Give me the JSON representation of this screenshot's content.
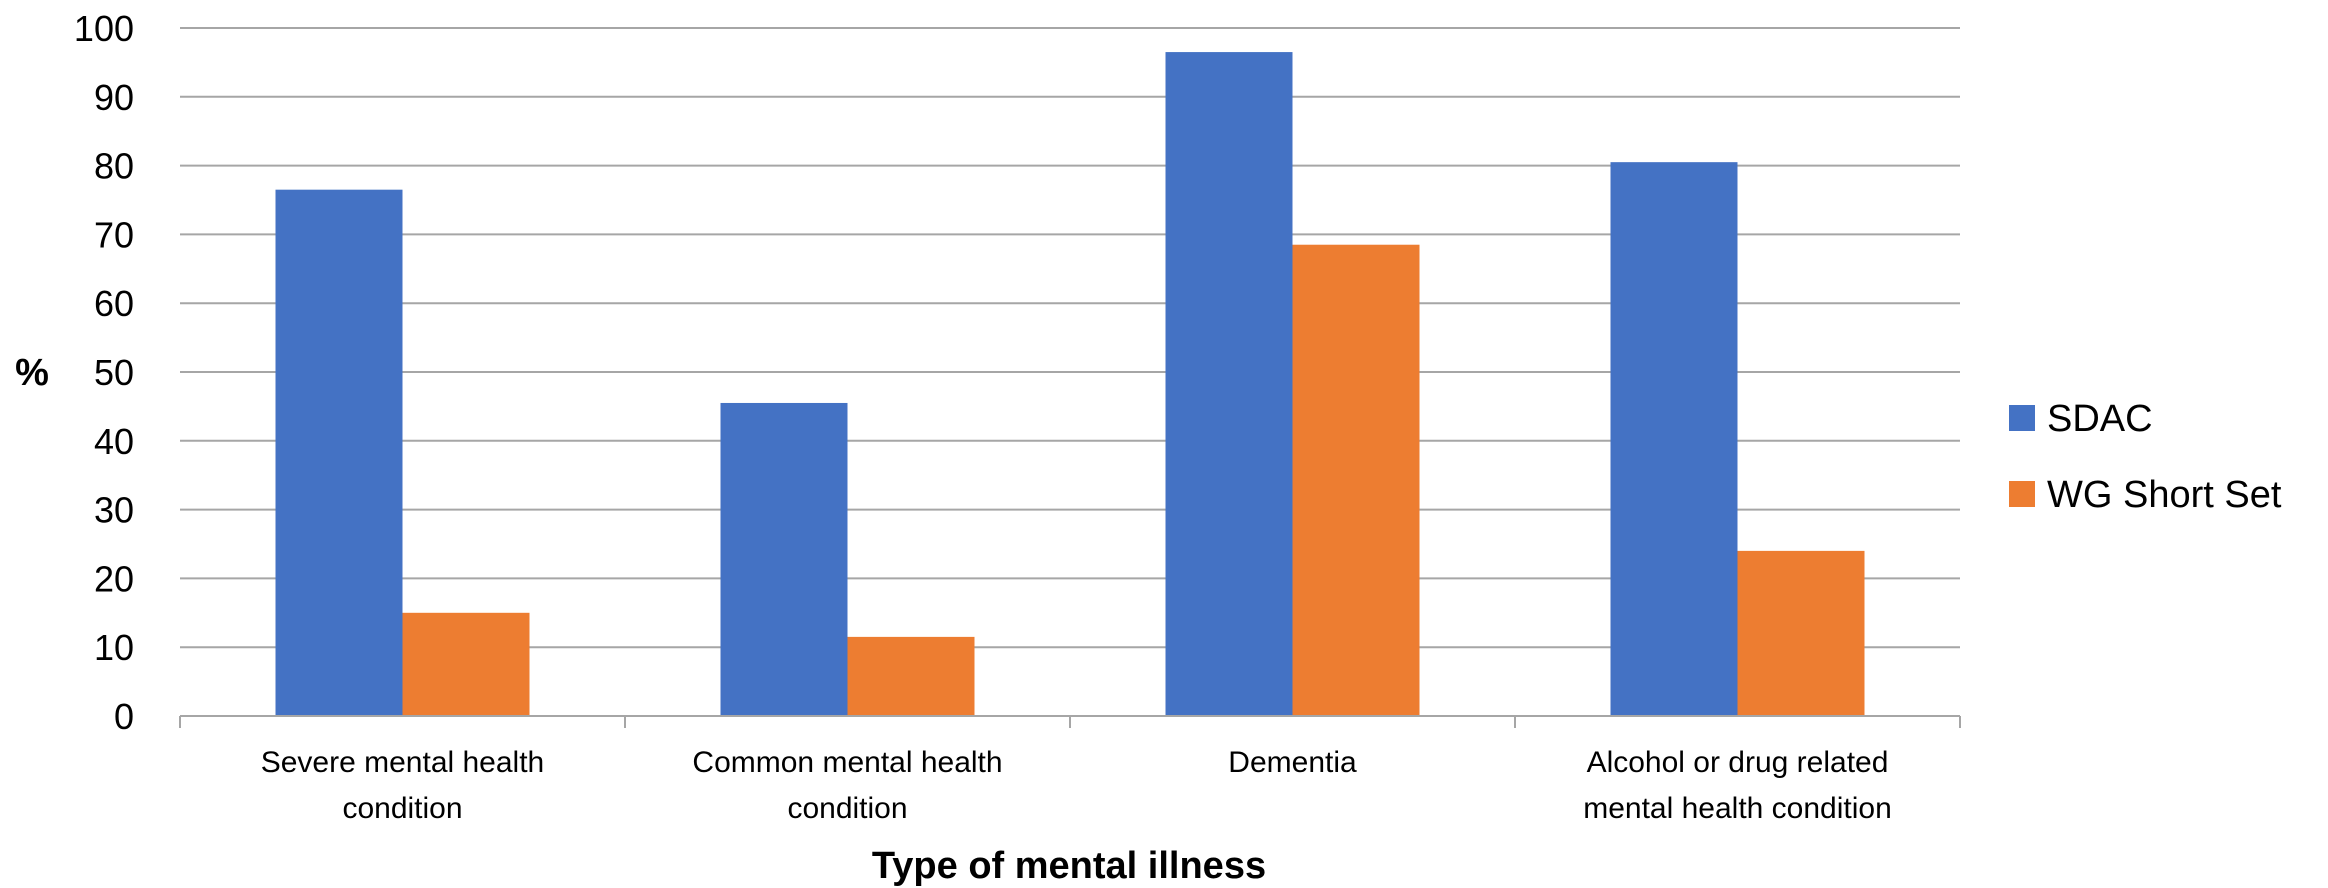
{
  "chart_data": {
    "type": "bar",
    "categories": [
      [
        "Severe mental health",
        "condition"
      ],
      [
        "Common mental health",
        "condition"
      ],
      [
        "Dementia"
      ],
      [
        "Alcohol or drug related",
        "mental health condition"
      ]
    ],
    "series": [
      {
        "name": "SDAC",
        "values": [
          76.5,
          45.5,
          96.5,
          80.5
        ],
        "color": "#4472C4"
      },
      {
        "name": "WG Short Set",
        "values": [
          15,
          11.5,
          68.5,
          24
        ],
        "color": "#ED7D31"
      }
    ],
    "y_ticks": [
      "0",
      "10",
      "20",
      "30",
      "40",
      "50",
      "60",
      "70",
      "80",
      "90",
      "100"
    ],
    "ylim": [
      0,
      100
    ],
    "xlabel": "Type of mental illness",
    "ylabel": "%",
    "grid": true,
    "legend_position": "right",
    "colors": {
      "grid": "#A6A6A6",
      "axis": "#A6A6A6"
    }
  }
}
